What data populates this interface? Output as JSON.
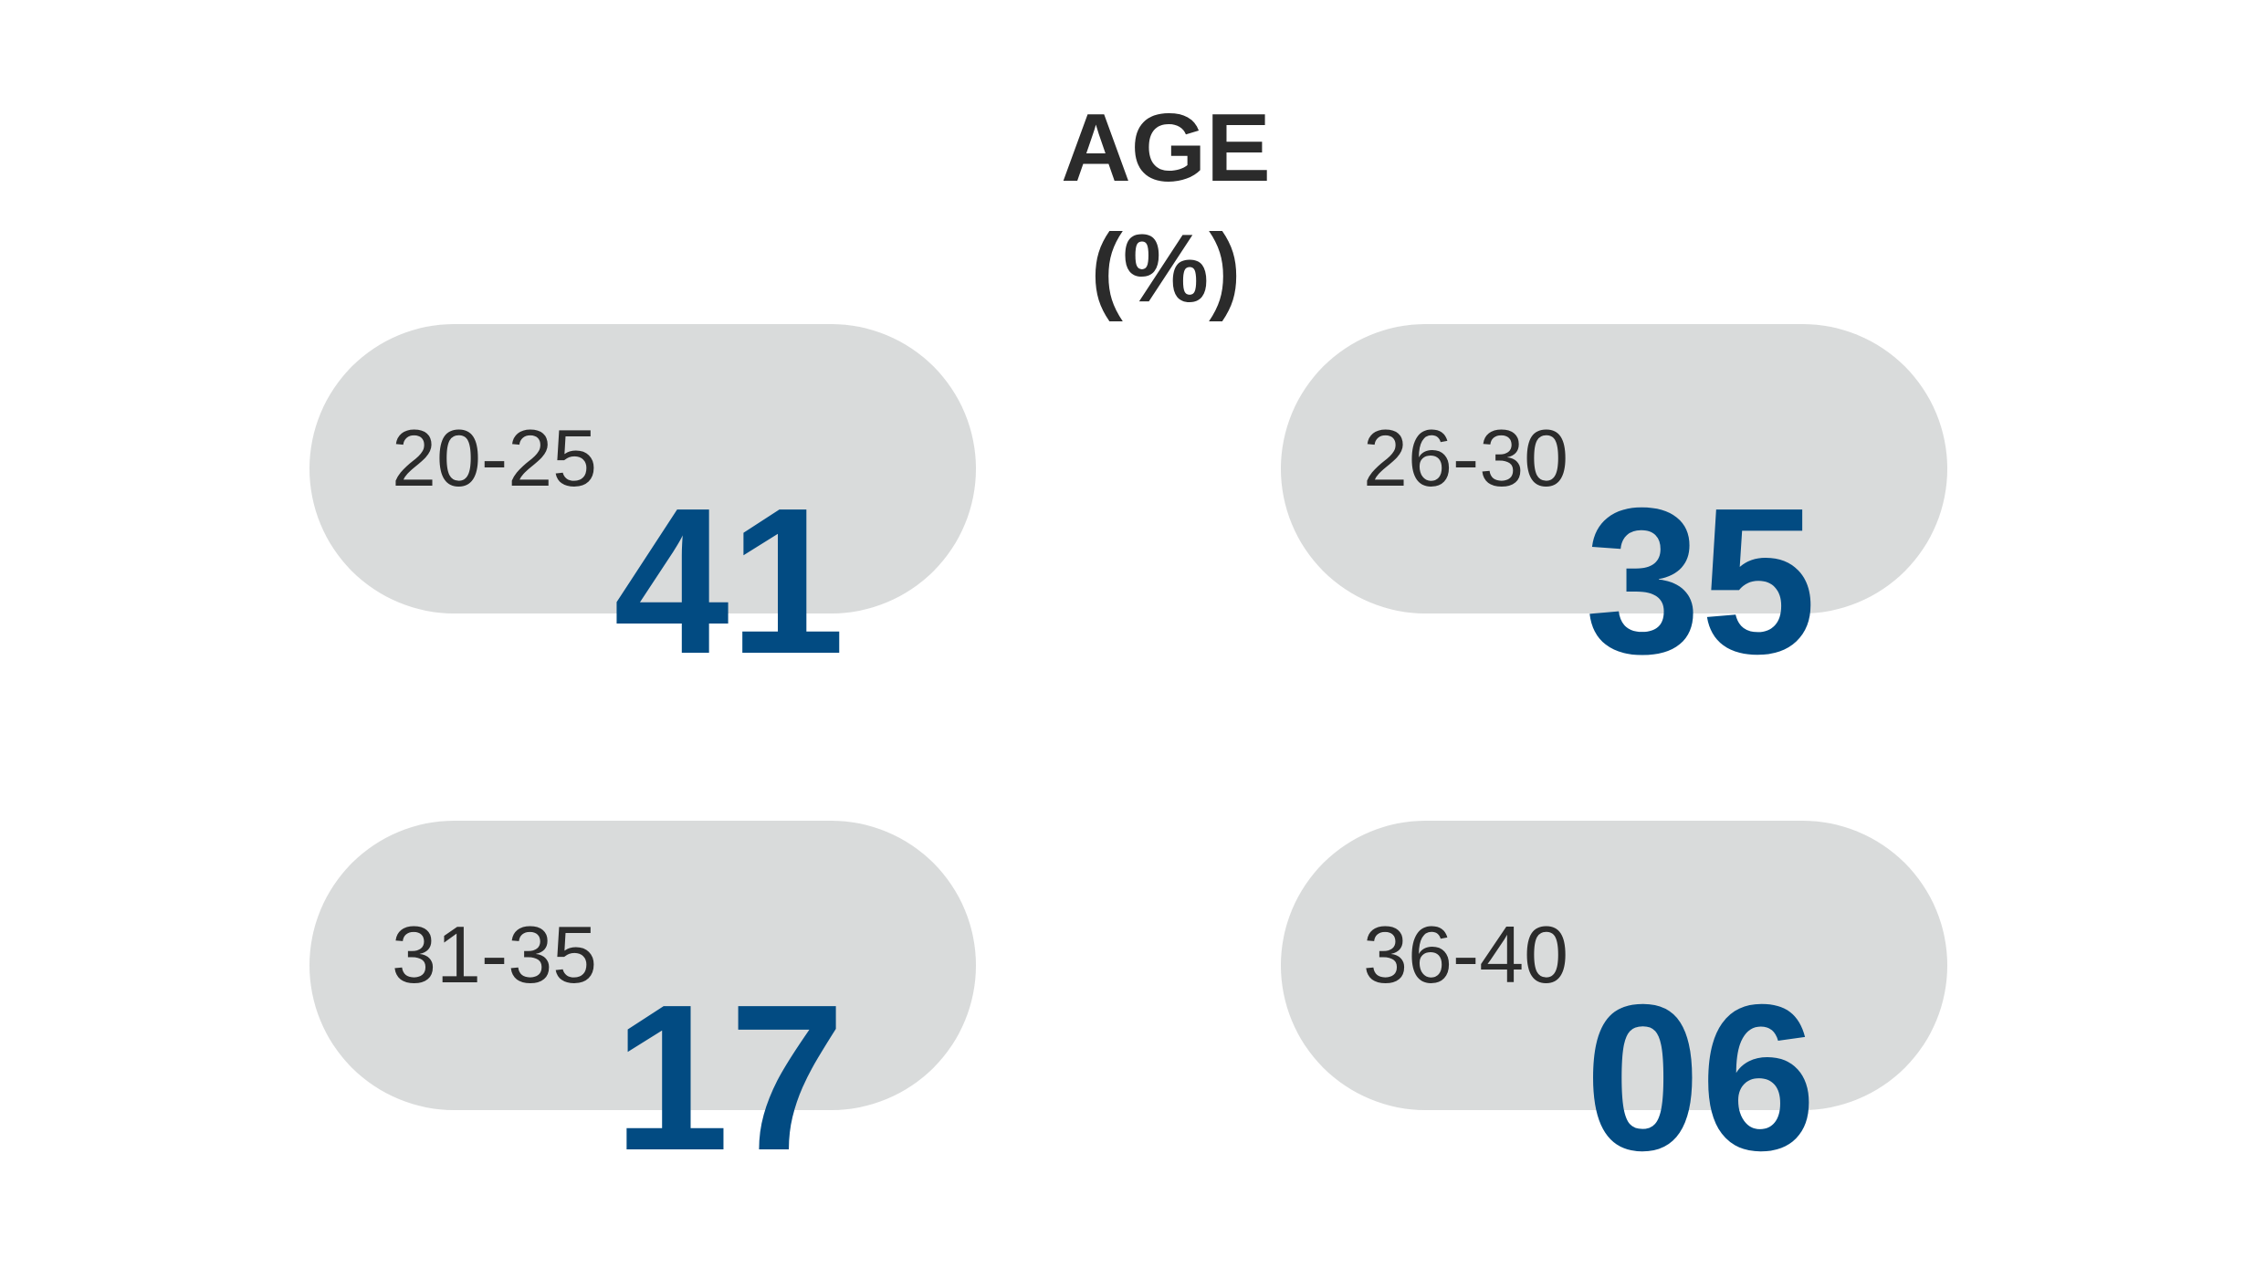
{
  "title": "AGE",
  "subtitle": "(%)",
  "items": [
    {
      "label": "20-25",
      "value": "41"
    },
    {
      "label": "26-30",
      "value": "35"
    },
    {
      "label": "31-35",
      "value": "17"
    },
    {
      "label": "36-40",
      "value": "06"
    }
  ]
}
